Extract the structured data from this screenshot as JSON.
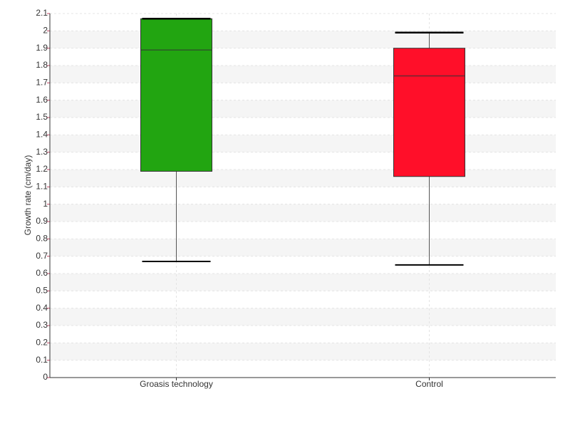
{
  "chart_data": {
    "type": "box",
    "y_label": "Growth rate (cm/day)",
    "categories": [
      "Groasis technology",
      "Control"
    ],
    "series": [
      {
        "color": "#22a511",
        "min": 0.67,
        "q1": 1.19,
        "median": 1.89,
        "q3": 2.07,
        "max": 2.07
      },
      {
        "color": "#ff0f29",
        "min": 0.65,
        "q1": 1.16,
        "median": 1.74,
        "q3": 1.9,
        "max": 1.99
      }
    ],
    "ylim": [
      0,
      2.1
    ],
    "yticks": [
      0,
      0.1,
      0.2,
      0.3,
      0.4,
      0.5,
      0.6,
      0.7,
      0.8,
      0.9,
      1,
      1.1,
      1.2,
      1.3,
      1.4,
      1.5,
      1.6,
      1.7,
      1.8,
      1.9,
      2,
      2.1
    ],
    "grid": true
  }
}
